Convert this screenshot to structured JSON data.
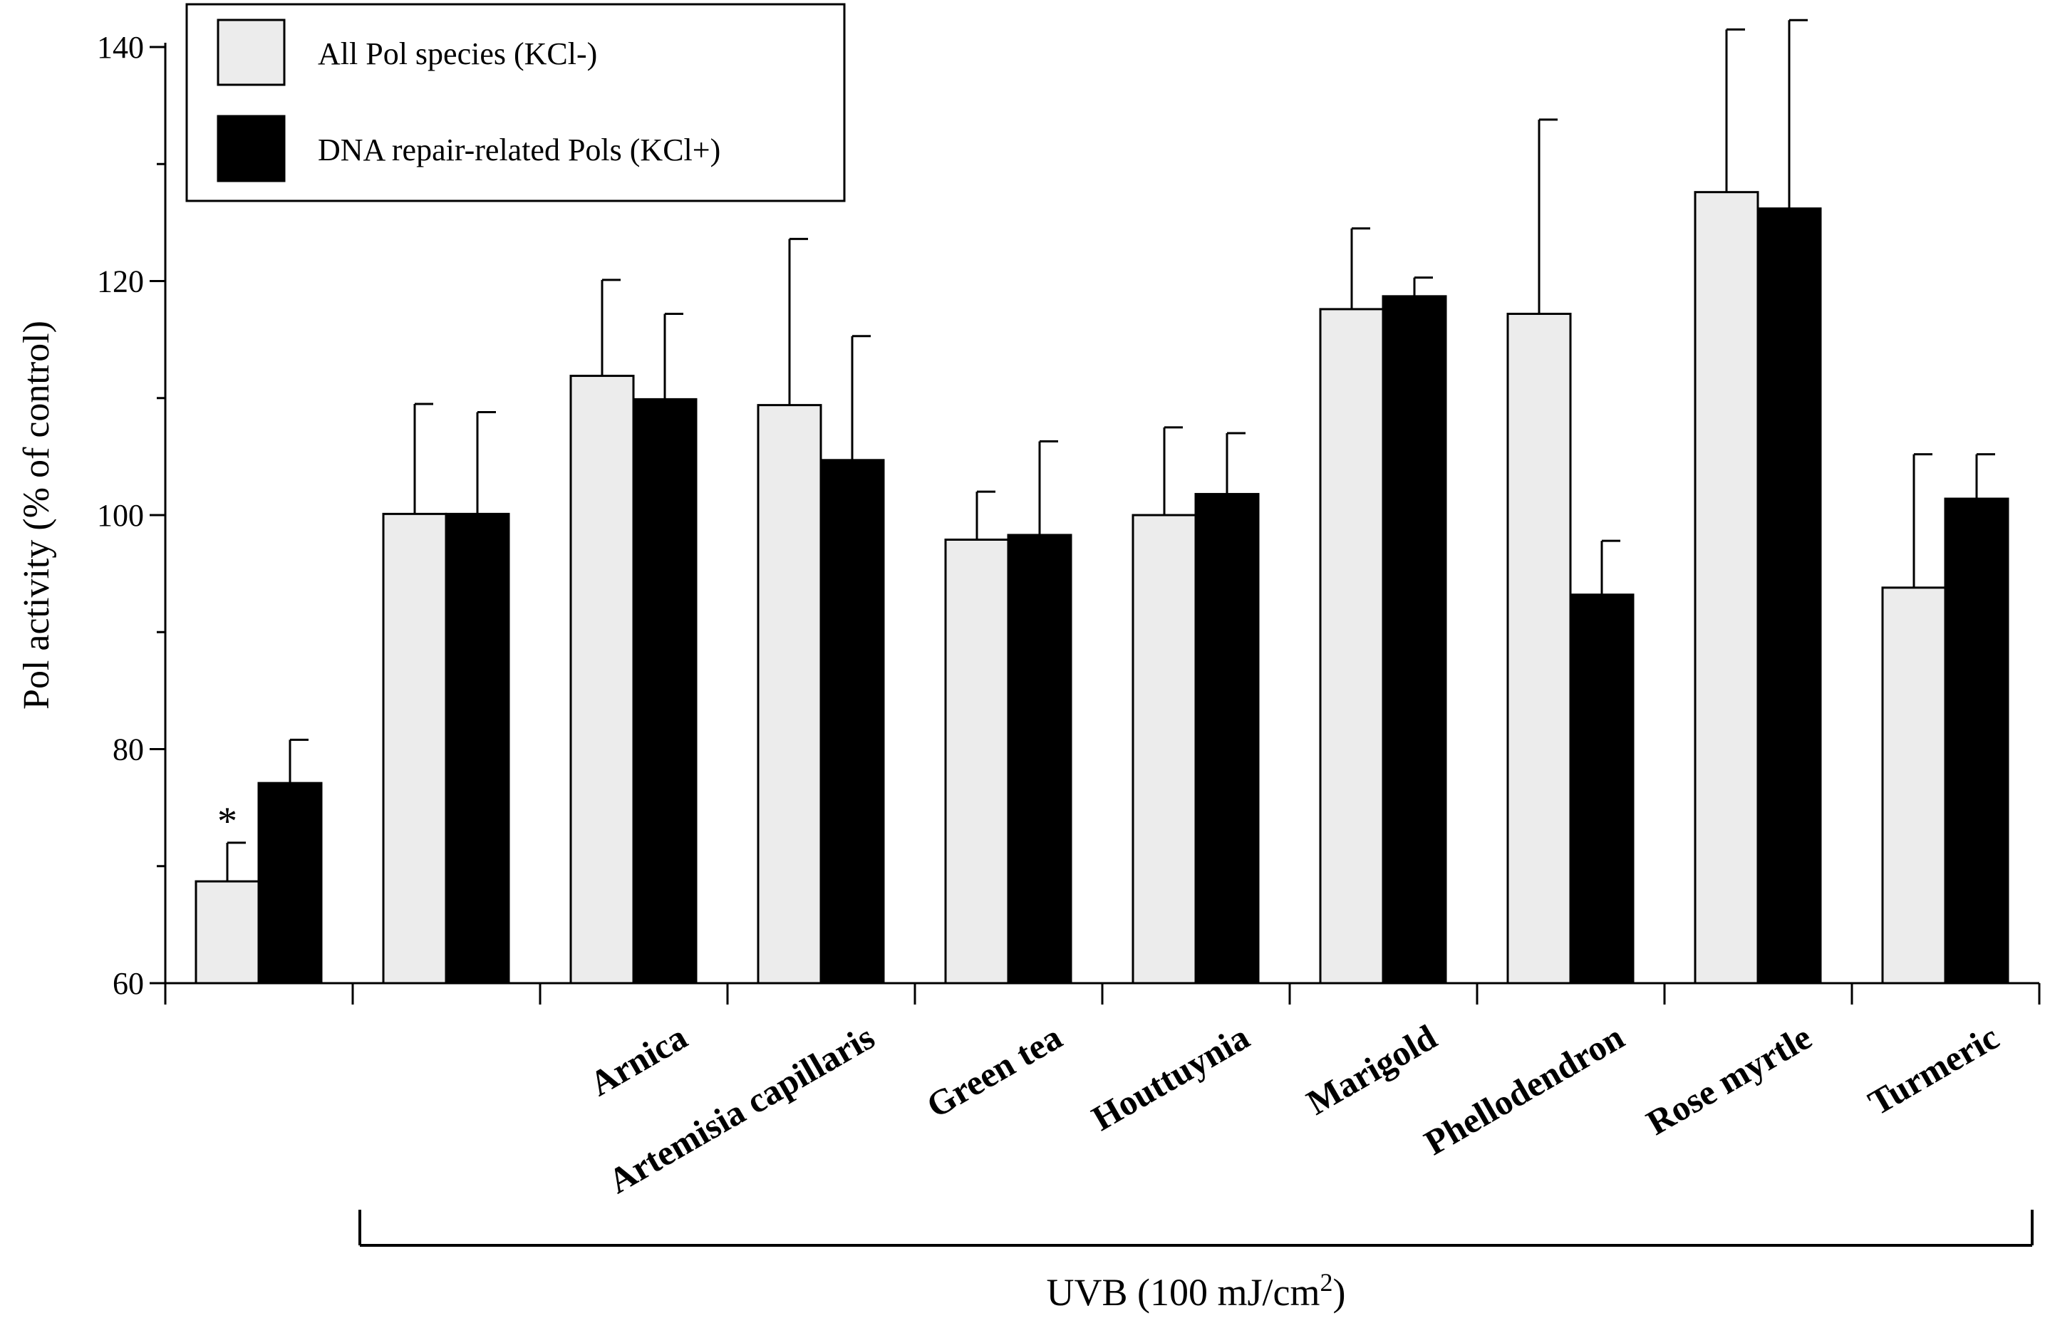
{
  "chart_data": {
    "type": "bar",
    "ylabel": "Pol activity (% of control)",
    "ylim": [
      60,
      140
    ],
    "yticks": [
      "60",
      "80",
      "100",
      "120",
      "140"
    ],
    "categories": [
      "",
      "",
      "Arnica",
      "Artemisia capillaris",
      "Green tea",
      "Houttuynia",
      "Marigold",
      "Phellodendron",
      "Rose myrtle",
      "Turmeric"
    ],
    "series": [
      {
        "name": "All Pol species (KCl-)",
        "color": "#ececec",
        "values": [
          68.7,
          100.1,
          111.9,
          109.4,
          97.9,
          100.0,
          117.6,
          117.2,
          127.6,
          93.8
        ],
        "errors": [
          3.3,
          9.4,
          8.2,
          14.2,
          4.1,
          7.5,
          6.9,
          16.6,
          13.9,
          11.4
        ]
      },
      {
        "name": "DNA repair-related Pols (KCl+)",
        "color": "#000000",
        "values": [
          77.1,
          100.1,
          109.9,
          104.7,
          98.3,
          101.8,
          118.7,
          93.2,
          126.2,
          101.4
        ],
        "errors": [
          3.7,
          8.7,
          7.3,
          10.6,
          8.0,
          5.2,
          1.6,
          4.6,
          16.1,
          3.8
        ]
      }
    ],
    "annotations": [
      {
        "text": "*",
        "category_index": 0,
        "series_index": 0
      }
    ],
    "bracket": {
      "label_main": "UVB (100 mJ/cm",
      "label_sup": "2",
      "label_close": ")",
      "from_category": 1,
      "to_category": 9
    },
    "legend": {
      "position": "top-left"
    }
  }
}
